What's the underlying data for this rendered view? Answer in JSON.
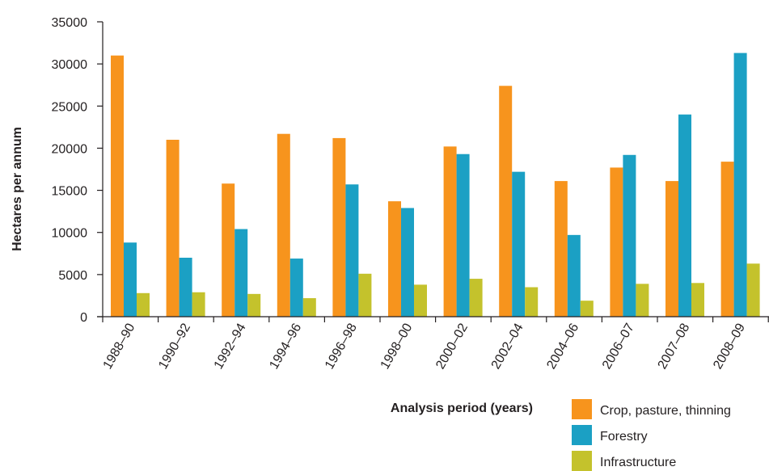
{
  "chart_data": {
    "type": "bar",
    "categories": [
      "1988–90",
      "1990–92",
      "1992–94",
      "1994–96",
      "1996–98",
      "1998–00",
      "2000–02",
      "2002–04",
      "2004–06",
      "2006–07",
      "2007–08",
      "2008–09"
    ],
    "series": [
      {
        "name": "Crop, pasture, thinning",
        "color": "#f7941d",
        "values": [
          31000,
          21000,
          15800,
          21700,
          21200,
          13700,
          20200,
          27400,
          16100,
          17700,
          16100,
          18400
        ]
      },
      {
        "name": "Forestry",
        "color": "#1ba0c4",
        "values": [
          8800,
          7000,
          10400,
          6900,
          15700,
          12900,
          19300,
          17200,
          9700,
          19200,
          24000,
          31300
        ]
      },
      {
        "name": "Infrastructure",
        "color": "#c4c22c",
        "values": [
          2800,
          2900,
          2700,
          2200,
          5100,
          3800,
          4500,
          3500,
          1900,
          3900,
          4000,
          6300
        ]
      }
    ],
    "title": "",
    "xlabel": "Analysis period (years)",
    "ylabel": "Hectares per annum",
    "ylim": [
      0,
      35000
    ],
    "yticks": [
      0,
      5000,
      10000,
      15000,
      20000,
      25000,
      30000,
      35000
    ],
    "grid": false,
    "legend_position": "bottom-right"
  }
}
